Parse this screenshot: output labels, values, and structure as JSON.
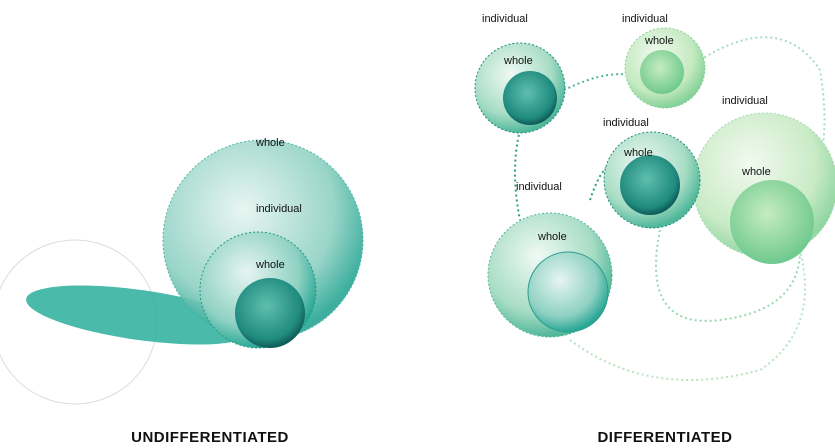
{
  "left_panel": {
    "labels": [
      "whole",
      "individual",
      "whole"
    ],
    "caption": "UNDIFFERENTIATED"
  },
  "right_panel": {
    "labels": [
      "individual",
      "whole",
      "individual",
      "whole",
      "individual",
      "whole",
      "individual",
      "whole",
      "individual",
      "whole"
    ],
    "caption": "DIFFERENTIATED"
  }
}
